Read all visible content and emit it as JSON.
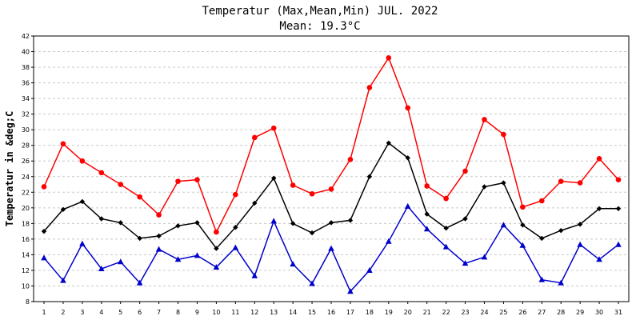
{
  "chart_data": {
    "type": "line",
    "title": "Temperatur (Max,Mean,Min) JUL. 2022",
    "subtitle": "Mean: 19.3°C",
    "xlabel": "",
    "ylabel": "Temperatur in &deg;C",
    "x": [
      1,
      2,
      3,
      4,
      5,
      6,
      7,
      8,
      9,
      10,
      11,
      12,
      13,
      14,
      15,
      16,
      17,
      18,
      19,
      20,
      21,
      22,
      23,
      24,
      25,
      26,
      27,
      28,
      29,
      30,
      31
    ],
    "ylim": [
      8,
      42
    ],
    "yticks": [
      8,
      10,
      12,
      14,
      16,
      18,
      20,
      22,
      24,
      26,
      28,
      30,
      32,
      34,
      36,
      38,
      40,
      42
    ],
    "grid": true,
    "series": [
      {
        "key": "max",
        "color": "#ff0000",
        "marker": "circle",
        "values": [
          22.7,
          28.2,
          26.0,
          24.5,
          23.0,
          21.4,
          19.1,
          23.4,
          23.6,
          16.9,
          21.7,
          29.0,
          30.2,
          22.9,
          21.8,
          22.4,
          26.2,
          35.4,
          39.2,
          32.8,
          22.8,
          21.2,
          24.7,
          31.3,
          29.4,
          20.1,
          20.9,
          23.4,
          23.2,
          26.3,
          23.6
        ]
      },
      {
        "key": "mean",
        "color": "#000000",
        "marker": "diamond",
        "values": [
          17.0,
          19.8,
          20.8,
          18.6,
          18.1,
          16.1,
          16.4,
          17.7,
          18.1,
          14.8,
          17.5,
          20.6,
          23.8,
          18.0,
          16.8,
          18.1,
          18.4,
          24.0,
          28.3,
          26.4,
          19.2,
          17.4,
          18.6,
          22.7,
          23.2,
          17.8,
          16.1,
          17.1,
          17.9,
          19.9,
          19.9
        ]
      },
      {
        "key": "min",
        "color": "#0000cc",
        "marker": "triangle",
        "values": [
          13.6,
          10.7,
          15.4,
          12.2,
          13.1,
          10.4,
          14.7,
          13.4,
          13.9,
          12.4,
          14.9,
          11.3,
          18.3,
          12.8,
          10.3,
          14.8,
          9.3,
          12.0,
          15.7,
          20.2,
          17.3,
          15.0,
          12.9,
          13.7,
          17.8,
          15.2,
          10.8,
          10.4,
          15.3,
          13.4,
          15.3
        ]
      }
    ]
  }
}
